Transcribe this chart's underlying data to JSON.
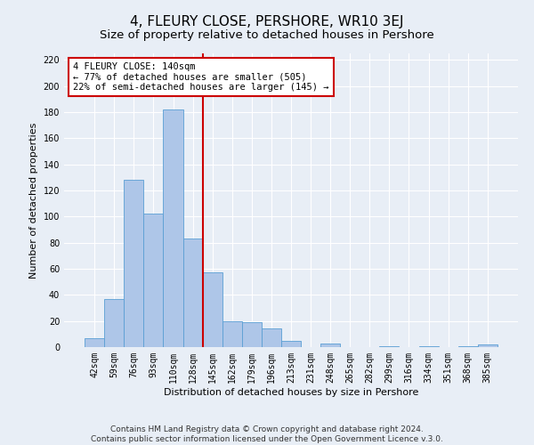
{
  "title": "4, FLEURY CLOSE, PERSHORE, WR10 3EJ",
  "subtitle": "Size of property relative to detached houses in Pershore",
  "xlabel": "Distribution of detached houses by size in Pershore",
  "ylabel": "Number of detached properties",
  "bar_labels": [
    "42sqm",
    "59sqm",
    "76sqm",
    "93sqm",
    "110sqm",
    "128sqm",
    "145sqm",
    "162sqm",
    "179sqm",
    "196sqm",
    "213sqm",
    "231sqm",
    "248sqm",
    "265sqm",
    "282sqm",
    "299sqm",
    "316sqm",
    "334sqm",
    "351sqm",
    "368sqm",
    "385sqm"
  ],
  "bar_values": [
    7,
    37,
    128,
    102,
    182,
    83,
    57,
    20,
    19,
    14,
    5,
    0,
    3,
    0,
    0,
    1,
    0,
    1,
    0,
    1,
    2
  ],
  "bar_color": "#aec6e8",
  "bar_edge_color": "#5a9fd4",
  "vline_color": "#cc0000",
  "annotation_text": "4 FLEURY CLOSE: 140sqm\n← 77% of detached houses are smaller (505)\n22% of semi-detached houses are larger (145) →",
  "annotation_box_color": "#ffffff",
  "annotation_box_edge": "#cc0000",
  "ylim": [
    0,
    225
  ],
  "yticks": [
    0,
    20,
    40,
    60,
    80,
    100,
    120,
    140,
    160,
    180,
    200,
    220
  ],
  "background_color": "#e8eef6",
  "grid_color": "#ffffff",
  "footer": "Contains HM Land Registry data © Crown copyright and database right 2024.\nContains public sector information licensed under the Open Government Licence v.3.0.",
  "title_fontsize": 11,
  "subtitle_fontsize": 9.5,
  "axis_label_fontsize": 8,
  "tick_fontsize": 7,
  "annotation_fontsize": 7.5,
  "footer_fontsize": 6.5
}
